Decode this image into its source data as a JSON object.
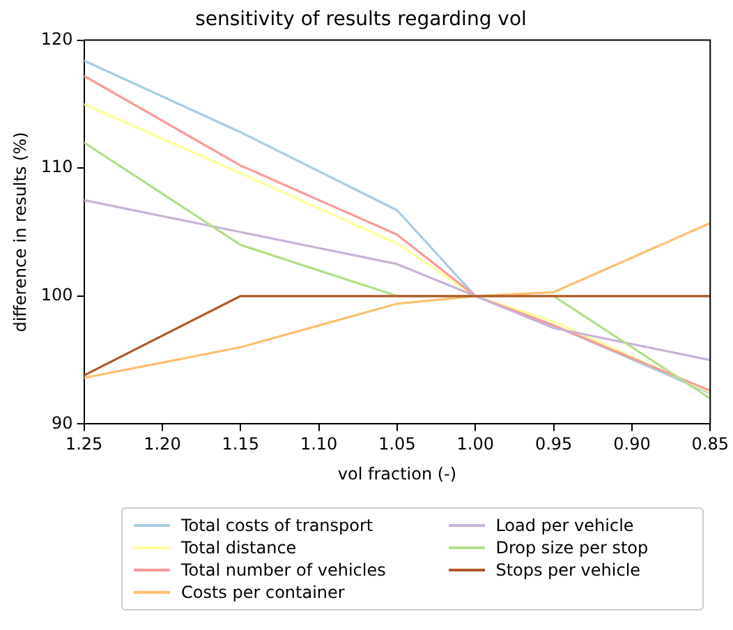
{
  "chart_data": {
    "type": "line",
    "title": "sensitivity of results regarding vol",
    "xlabel": "vol fraction (-)",
    "ylabel": "difference in results (%)",
    "x": [
      1.25,
      1.15,
      1.05,
      1.0,
      0.95,
      0.85
    ],
    "xlim": [
      1.25,
      0.85
    ],
    "xticks": [
      1.25,
      {
        "value": 1.2,
        "label": "1.20"
      },
      1.15,
      {
        "value": 1.1,
        "label": "1.10"
      },
      1.05,
      {
        "value": 1.0,
        "label": "1.00"
      },
      0.95,
      {
        "value": 0.9,
        "label": "0.90"
      },
      0.85
    ],
    "ylim": [
      90,
      120
    ],
    "yticks": [
      90,
      100,
      110,
      120
    ],
    "grid": false,
    "legend": "bottom",
    "marker": "none",
    "line_style": "solid",
    "series": [
      {
        "name": "Total costs of transport",
        "color": "#a6cee3",
        "values": [
          118.4,
          112.8,
          106.7,
          100,
          97.7,
          92.4
        ]
      },
      {
        "name": "Total distance",
        "color": "#ffff99",
        "values": [
          115.0,
          109.6,
          104.1,
          100,
          98.0,
          92.5
        ]
      },
      {
        "name": "Total number of vehicles",
        "color": "#fb9a99",
        "values": [
          117.2,
          110.2,
          104.8,
          100,
          97.7,
          92.6
        ]
      },
      {
        "name": "Costs per container",
        "color": "#fdbf6f",
        "values": [
          93.6,
          96.0,
          99.4,
          100,
          100.3,
          105.7
        ]
      },
      {
        "name": "Load per vehicle",
        "color": "#cab2d6",
        "values": [
          107.5,
          105.0,
          102.5,
          100,
          97.5,
          95.0
        ]
      },
      {
        "name": "Drop size per stop",
        "color": "#b2df8a",
        "values": [
          112.0,
          104.0,
          100,
          100,
          100,
          92.0
        ]
      },
      {
        "name": "Stops per vehicle",
        "color": "#b15928",
        "values": [
          93.8,
          100,
          100,
          100,
          100,
          100
        ]
      }
    ]
  }
}
